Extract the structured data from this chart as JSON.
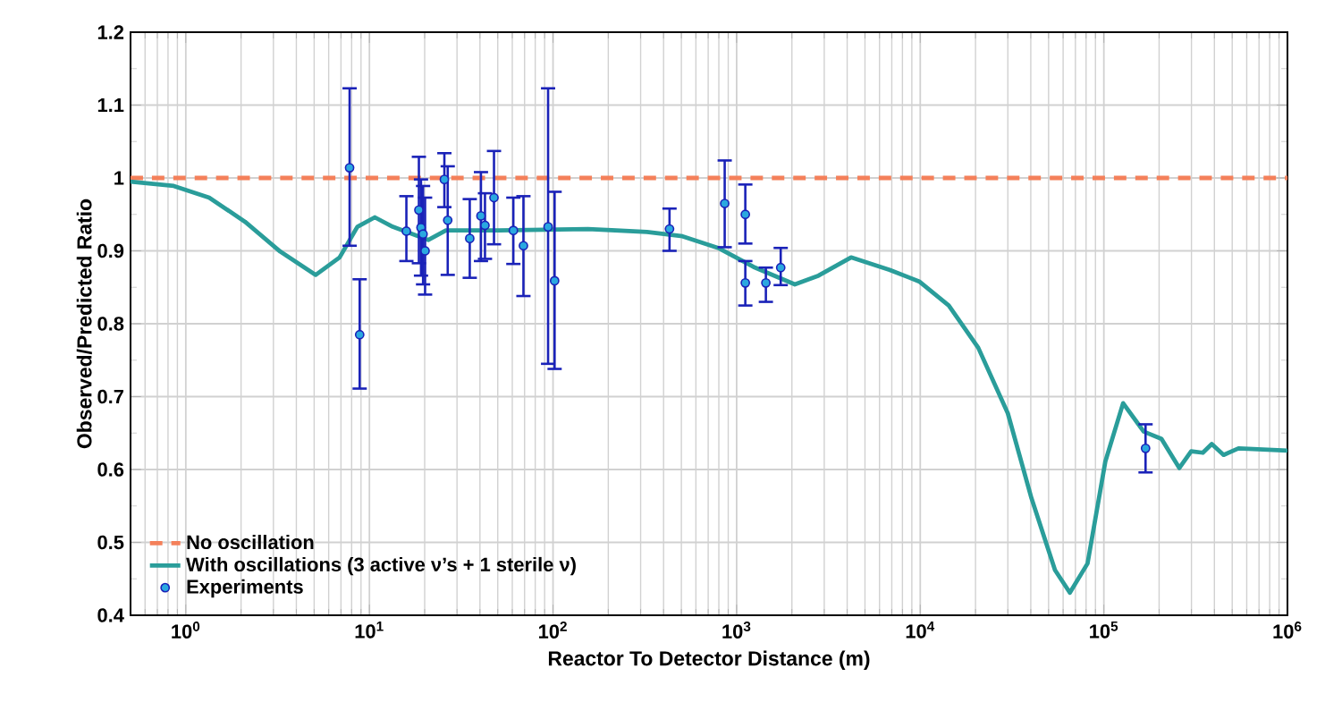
{
  "chart_data": {
    "type": "scatter",
    "xlabel": "Reactor To Detector Distance (m)",
    "ylabel": "Observed/Predicted Ratio",
    "log": "x",
    "grid": true,
    "legend": "bottom left",
    "xlim": [
      0.5,
      1000000
    ],
    "ylim": [
      0.4,
      1.2
    ],
    "xticks": [
      {
        "value": 1,
        "label": "10$^{0}$"
      },
      {
        "value": 10,
        "label": "10$^{1}$"
      },
      {
        "value": 100,
        "label": "10$^{2}$"
      },
      {
        "value": 1000,
        "label": "10$^{3}$"
      },
      {
        "value": 10000,
        "label": "10$^{4}$"
      },
      {
        "value": 100000,
        "label": "10$^{5}$"
      },
      {
        "value": 1000000,
        "label": "10$^{6}$"
      }
    ],
    "yticks": [
      0.4,
      0.5,
      0.6,
      0.7,
      0.8,
      0.9,
      1,
      1.1,
      1.2
    ],
    "series": [
      {
        "name": "No oscillation",
        "type": "line",
        "color": "#f4805a",
        "line_style": "dashed",
        "marker": "none",
        "x": [
          0.5,
          1000000
        ],
        "values": [
          1,
          1
        ]
      },
      {
        "name": "With oscillations (3 active ν’s + 1 sterile ν)",
        "type": "line",
        "color": "#2a9d9a",
        "line_style": "solid",
        "marker": "none",
        "x": [
          0.5,
          0.86,
          1.34,
          2.1,
          3.27,
          5.1,
          6.88,
          8.6,
          10.7,
          13.4,
          20.9,
          26.1,
          51,
          155,
          325,
          507,
          792,
          1236,
          2075,
          2794,
          4200,
          6800,
          9860,
          14300,
          20700,
          30000,
          40300,
          54200,
          65300,
          81500,
          101900,
          127300,
          164900,
          206000,
          257500,
          299000,
          346000,
          387000,
          449000,
          541000,
          1000000
        ],
        "values": [
          0.995,
          0.989,
          0.973,
          0.94,
          0.899,
          0.867,
          0.891,
          0.933,
          0.946,
          0.933,
          0.915,
          0.928,
          0.928,
          0.93,
          0.926,
          0.92,
          0.904,
          0.878,
          0.854,
          0.866,
          0.891,
          0.874,
          0.858,
          0.825,
          0.767,
          0.677,
          0.561,
          0.462,
          0.431,
          0.471,
          0.611,
          0.691,
          0.652,
          0.642,
          0.602,
          0.625,
          0.623,
          0.635,
          0.62,
          0.629,
          0.626
        ]
      },
      {
        "name": "Experiments",
        "color": "#2aa8e0",
        "marker": "circle",
        "x": [
          7.8,
          8.85,
          15.9,
          18.6,
          19.1,
          19.6,
          20.1,
          25.6,
          26.7,
          35.2,
          40.5,
          42.6,
          47.7,
          60.8,
          69,
          94,
          102,
          431,
          861,
          1115,
          1115,
          1443,
          1738,
          168700
        ],
        "values": [
          1.014,
          0.785,
          0.927,
          0.956,
          0.932,
          0.923,
          0.9,
          0.998,
          0.942,
          0.917,
          0.948,
          0.935,
          0.973,
          0.928,
          0.907,
          0.933,
          0.859,
          0.93,
          0.965,
          0.95,
          0.856,
          0.856,
          0.877,
          0.629
        ],
        "errors": [
          [
            0.907,
            1.123
          ],
          [
            0.711,
            0.861
          ],
          [
            0.886,
            0.975
          ],
          [
            0.883,
            1.029
          ],
          [
            0.866,
            0.998
          ],
          [
            0.854,
            0.989
          ],
          [
            0.84,
            0.973
          ],
          [
            0.96,
            1.034
          ],
          [
            0.867,
            1.016
          ],
          [
            0.863,
            0.971
          ],
          [
            0.886,
            1.008
          ],
          [
            0.889,
            0.979
          ],
          [
            0.909,
            1.037
          ],
          [
            0.882,
            0.973
          ],
          [
            0.838,
            0.975
          ],
          [
            0.745,
            1.123
          ],
          [
            0.738,
            0.981
          ],
          [
            0.9,
            0.958
          ],
          [
            0.905,
            1.024
          ],
          [
            0.91,
            0.991
          ],
          [
            0.825,
            0.886
          ],
          [
            0.83,
            0.877
          ],
          [
            0.853,
            0.904
          ],
          [
            0.596,
            0.662
          ]
        ]
      }
    ]
  }
}
